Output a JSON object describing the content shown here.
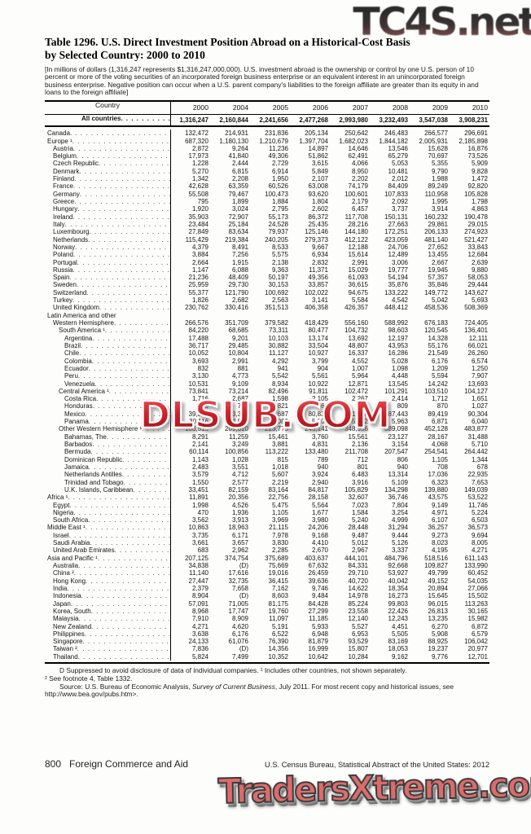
{
  "watermarks": {
    "top": "TC4S.net",
    "middle": "DLSUB.COM",
    "bottom": "TradersXtreme.com"
  },
  "title": {
    "line1": "Table 1296. U.S. Direct Investment Position Abroad on a Historical-Cost Basis",
    "line2": "by Selected Country: 2000 to 2010"
  },
  "note": "[In millions of dollars (1,316,247 represents $1,316,247,000,000). U.S. investment abroad is the ownership or control by one U.S. person of 10 percent or more of the voting securities of an incorporated foreign  business enterprise or an equivalent interest in an unincorporated foreign business enterprise. Negative position can occur when a U.S. parent company's liabilities to the foreign affiliate are greater than its equity in and loans to the foreign affiliate]",
  "table": {
    "columns": [
      "Country",
      "2000",
      "2004",
      "2005",
      "2006",
      "2007",
      "2008",
      "2009",
      "2010"
    ],
    "all_countries": {
      "label": "All countries",
      "values": [
        "1,316,247",
        "2,160,844",
        "2,241,656",
        "2,477,268",
        "2,993,980",
        "3,232,493",
        "3,547,038",
        "3,908,231"
      ]
    },
    "rows": [
      {
        "label": "Canada",
        "indent": 0,
        "values": [
          "132,472",
          "214,931",
          "231,836",
          "205,134",
          "250,642",
          "246,483",
          "266,577",
          "296,691"
        ]
      },
      {
        "label": "Europe ¹",
        "indent": 0,
        "values": [
          "687,320",
          "1,180,130",
          "1,210,679",
          "1,397,704",
          "1,682,023",
          "1,844,182",
          "2,005,931",
          "2,185,898"
        ]
      },
      {
        "label": "Austria",
        "indent": 1,
        "values": [
          "2,872",
          "9,264",
          "11,236",
          "14,897",
          "14,646",
          "13,546",
          "15,628",
          "16,876"
        ]
      },
      {
        "label": "Belgium",
        "indent": 1,
        "values": [
          "17,973",
          "41,840",
          "49,306",
          "51,862",
          "62,491",
          "65,279",
          "70,697",
          "73,526"
        ]
      },
      {
        "label": "Czech Republic",
        "indent": 1,
        "values": [
          "1,228",
          "2,444",
          "2,729",
          "3,615",
          "4,066",
          "5,053",
          "5,355",
          "5,909"
        ]
      },
      {
        "label": "Denmark",
        "indent": 1,
        "values": [
          "5,270",
          "6,815",
          "6,914",
          "5,849",
          "8,950",
          "10,481",
          "9,790",
          "9,828"
        ]
      },
      {
        "label": "Finland",
        "indent": 1,
        "values": [
          "1,342",
          "2,208",
          "1,950",
          "2,107",
          "2,202",
          "2,012",
          "1,988",
          "1,472"
        ]
      },
      {
        "label": "France",
        "indent": 1,
        "values": [
          "42,628",
          "63,359",
          "60,526",
          "63,008",
          "74,179",
          "84,409",
          "89,249",
          "92,820"
        ]
      },
      {
        "label": "Germany",
        "indent": 1,
        "values": [
          "55,508",
          "79,467",
          "100,473",
          "93,620",
          "100,601",
          "107,833",
          "110,958",
          "105,828"
        ]
      },
      {
        "label": "Greece",
        "indent": 1,
        "values": [
          "795",
          "1,899",
          "1,884",
          "1,804",
          "2,179",
          "2,092",
          "1,995",
          "1,798"
        ]
      },
      {
        "label": "Hungary",
        "indent": 1,
        "values": [
          "1,920",
          "3,024",
          "2,795",
          "2,602",
          "6,457",
          "3,737",
          "3,914",
          "4,863"
        ]
      },
      {
        "label": "Ireland",
        "indent": 1,
        "values": [
          "35,903",
          "72,907",
          "55,173",
          "86,372",
          "117,708",
          "150,131",
          "160,232",
          "190,478"
        ]
      },
      {
        "label": "Italy",
        "indent": 1,
        "values": [
          "23,484",
          "25,184",
          "24,528",
          "25,435",
          "28,216",
          "27,663",
          "29,861",
          "29,015"
        ]
      },
      {
        "label": "Luxembourg",
        "indent": 1,
        "values": [
          "27,849",
          "83,634",
          "79,937",
          "125,146",
          "144,180",
          "172,251",
          "206,133",
          "274,923"
        ]
      },
      {
        "label": "Netherlands",
        "indent": 1,
        "values": [
          "115,429",
          "219,384",
          "240,205",
          "279,373",
          "412,122",
          "423,059",
          "481,140",
          "521,427"
        ]
      },
      {
        "label": "Norway",
        "indent": 1,
        "values": [
          "4,379",
          "8,491",
          "8,533",
          "9,667",
          "12,188",
          "24,706",
          "27,652",
          "33,843"
        ]
      },
      {
        "label": "Poland",
        "indent": 1,
        "values": [
          "3,884",
          "7,256",
          "5,575",
          "6,934",
          "15,614",
          "12,489",
          "13,455",
          "12,684"
        ]
      },
      {
        "label": "Portugal",
        "indent": 1,
        "values": [
          "2,664",
          "1,915",
          "2,138",
          "2,832",
          "2,991",
          "3,006",
          "2,667",
          "2,639"
        ]
      },
      {
        "label": "Russia",
        "indent": 1,
        "values": [
          "1,147",
          "6,088",
          "9,363",
          "11,371",
          "15,029",
          "19,777",
          "19,945",
          "9,880"
        ]
      },
      {
        "label": "Spain",
        "indent": 1,
        "values": [
          "21,236",
          "48,409",
          "50,197",
          "49,356",
          "61,093",
          "54,194",
          "57,357",
          "58,053"
        ]
      },
      {
        "label": "Sweden",
        "indent": 1,
        "values": [
          "25,959",
          "29,730",
          "30,153",
          "33,857",
          "36,615",
          "35,876",
          "35,846",
          "29,444"
        ]
      },
      {
        "label": "Switzerland",
        "indent": 1,
        "values": [
          "55,377",
          "121,790",
          "100,692",
          "102,022",
          "94,675",
          "133,222",
          "149,772",
          "143,627"
        ]
      },
      {
        "label": "Turkey",
        "indent": 1,
        "values": [
          "1,826",
          "2,682",
          "2,563",
          "3,141",
          "5,584",
          "4,542",
          "5,042",
          "5,693"
        ]
      },
      {
        "label": "United Kingdom",
        "indent": 1,
        "values": [
          "230,762",
          "330,416",
          "351,513",
          "406,358",
          "426,357",
          "448,412",
          "458,536",
          "508,369"
        ]
      },
      {
        "label": "Latin America and other",
        "indent": 0,
        "values": null
      },
      {
        "label": "Western Hemisphere",
        "indent": 1,
        "values": [
          "266,576",
          "351,709",
          "379,582",
          "418,429",
          "556,160",
          "588,992",
          "676,183",
          "724,405"
        ]
      },
      {
        "label": "South America ¹",
        "indent": 2,
        "values": [
          "84,220",
          "68,685",
          "73,311",
          "80,477",
          "104,732",
          "98,603",
          "120,545",
          "136,401"
        ]
      },
      {
        "label": "Argentina",
        "indent": 3,
        "values": [
          "17,488",
          "9,201",
          "10,103",
          "13,174",
          "13,692",
          "12,197",
          "14,328",
          "12,111"
        ]
      },
      {
        "label": "Brazil",
        "indent": 3,
        "values": [
          "36,717",
          "29,485",
          "30,882",
          "33,504",
          "48,807",
          "43,953",
          "55,176",
          "66,021"
        ]
      },
      {
        "label": "Chile",
        "indent": 3,
        "values": [
          "10,052",
          "10,804",
          "11,127",
          "10,927",
          "16,337",
          "16,286",
          "21,549",
          "26,260"
        ]
      },
      {
        "label": "Colombia",
        "indent": 3,
        "values": [
          "3,693",
          "2,991",
          "4,292",
          "3,799",
          "4,552",
          "5,028",
          "6,176",
          "6,574"
        ]
      },
      {
        "label": "Ecuador",
        "indent": 3,
        "values": [
          "832",
          "881",
          "941",
          "904",
          "1,007",
          "1,098",
          "1,209",
          "1,250"
        ]
      },
      {
        "label": "Peru",
        "indent": 3,
        "values": [
          "3,130",
          "4,773",
          "5,542",
          "5,561",
          "5,964",
          "4,448",
          "5,594",
          "7,907"
        ]
      },
      {
        "label": "Venezuela",
        "indent": 3,
        "values": [
          "10,531",
          "9,109",
          "8,934",
          "10,922",
          "12,871",
          "13,545",
          "14,242",
          "13,693"
        ]
      },
      {
        "label": "Central America ¹",
        "indent": 2,
        "values": [
          "73,841",
          "73,214",
          "82,496",
          "91,811",
          "102,472",
          "101,291",
          "103,510",
          "104,127"
        ]
      },
      {
        "label": "Costa Rica",
        "indent": 3,
        "values": [
          "1,716",
          "2,687",
          "1,598",
          "2,105",
          "2,267",
          "2,414",
          "1,712",
          "1,651"
        ]
      },
      {
        "label": "Honduras",
        "indent": 3,
        "values": [
          "399",
          "755",
          "821",
          "864",
          "626",
          "809",
          "870",
          "1,027"
        ]
      },
      {
        "label": "Mexico",
        "indent": 3,
        "values": [
          "39,352",
          "63,384",
          "73,687",
          "80,831",
          "91,046",
          "87,443",
          "89,419",
          "90,304"
        ]
      },
      {
        "label": "Panama",
        "indent": 3,
        "values": [
          "30,116",
          "4,816",
          "5,086",
          "5,109",
          "5,712",
          "5,963",
          "6,871",
          "6,040"
        ]
      },
      {
        "label": "Other Western Hemisphere ¹",
        "indent": 2,
        "values": [
          "108,515",
          "209,810",
          "223,775",
          "246,141",
          "348,956",
          "389,098",
          "452,128",
          "483,877"
        ]
      },
      {
        "label": "Bahamas, The",
        "indent": 3,
        "values": [
          "8,291",
          "11,259",
          "15,461",
          "3,760",
          "15,561",
          "23,127",
          "28,167",
          "31,488"
        ]
      },
      {
        "label": "Barbados",
        "indent": 3,
        "values": [
          "2,141",
          "3,249",
          "3,881",
          "4,831",
          "2,136",
          "3,154",
          "4,068",
          "5,710"
        ]
      },
      {
        "label": "Bermuda",
        "indent": 3,
        "values": [
          "60,114",
          "100,856",
          "113,222",
          "133,480",
          "211,708",
          "207,547",
          "254,541",
          "264,442"
        ]
      },
      {
        "label": "Dominican Republic",
        "indent": 3,
        "values": [
          "1,143",
          "1,028",
          "815",
          "789",
          "712",
          "806",
          "1,105",
          "1,344"
        ]
      },
      {
        "label": "Jamaica",
        "indent": 3,
        "values": [
          "2,483",
          "3,551",
          "1,018",
          "940",
          "801",
          "940",
          "708",
          "678"
        ]
      },
      {
        "label": "Netherlands Antilles",
        "indent": 3,
        "values": [
          "3,579",
          "4,712",
          "5,607",
          "3,924",
          "6,483",
          "13,314",
          "17,036",
          "22,935"
        ]
      },
      {
        "label": "Trinidad and Tobago",
        "indent": 3,
        "values": [
          "1,550",
          "2,577",
          "2,219",
          "2,940",
          "3,916",
          "5,109",
          "6,323",
          "7,653"
        ]
      },
      {
        "label": "U.K. Islands, Caribbean",
        "indent": 3,
        "values": [
          "33,451",
          "82,159",
          "83,164",
          "84,817",
          "105,829",
          "134,298",
          "139,880",
          "149,039"
        ]
      },
      {
        "label": "Africa ¹",
        "indent": 0,
        "values": [
          "11,891",
          "20,356",
          "22,756",
          "28,158",
          "32,607",
          "36,746",
          "43,575",
          "53,522"
        ]
      },
      {
        "label": "Egypt",
        "indent": 1,
        "values": [
          "1,998",
          "4,526",
          "5,475",
          "5,564",
          "7,023",
          "7,804",
          "9,149",
          "11,746"
        ]
      },
      {
        "label": "Nigeria",
        "indent": 1,
        "values": [
          "470",
          "1,936",
          "1,105",
          "1,677",
          "1,584",
          "3,254",
          "4,971",
          "5,224"
        ]
      },
      {
        "label": "South Africa",
        "indent": 1,
        "values": [
          "3,562",
          "3,913",
          "3,969",
          "3,980",
          "5,240",
          "4,999",
          "6,107",
          "6,503"
        ]
      },
      {
        "label": "Middle East ¹",
        "indent": 0,
        "values": [
          "10,863",
          "18,963",
          "21,115",
          "24,206",
          "28,448",
          "31,294",
          "36,257",
          "36,573"
        ]
      },
      {
        "label": "Israel",
        "indent": 1,
        "values": [
          "3,735",
          "6,171",
          "7,978",
          "9,168",
          "9,487",
          "9,444",
          "9,273",
          "9,694"
        ]
      },
      {
        "label": "Saudi Arabia",
        "indent": 1,
        "values": [
          "3,661",
          "3,657",
          "3,830",
          "4,410",
          "5,012",
          "5,126",
          "8,023",
          "8,005"
        ]
      },
      {
        "label": "United Arab Emirates",
        "indent": 1,
        "values": [
          "683",
          "2,962",
          "2,285",
          "2,670",
          "2,967",
          "3,337",
          "4,195",
          "4,271"
        ]
      },
      {
        "label": "Asia and Pacific ¹",
        "indent": 0,
        "values": [
          "207,125",
          "374,754",
          "375,689",
          "403,637",
          "444,101",
          "484,796",
          "518,516",
          "611,143"
        ]
      },
      {
        "label": "Australia",
        "indent": 1,
        "values": [
          "34,838",
          "(D)",
          "75,669",
          "67,632",
          "84,331",
          "92,668",
          "109,827",
          "133,990"
        ]
      },
      {
        "label": "China ²",
        "indent": 1,
        "values": [
          "11,140",
          "17,616",
          "19,016",
          "26,459",
          "29,710",
          "53,927",
          "49,799",
          "60,452"
        ]
      },
      {
        "label": "Hong Kong",
        "indent": 1,
        "values": [
          "27,447",
          "32,735",
          "36,415",
          "39,636",
          "40,720",
          "40,042",
          "49,152",
          "54,035"
        ]
      },
      {
        "label": "India",
        "indent": 1,
        "values": [
          "2,379",
          "7,658",
          "7,162",
          "9,746",
          "14,622",
          "18,354",
          "20,894",
          "27,066"
        ]
      },
      {
        "label": "Indonesia",
        "indent": 1,
        "values": [
          "8,904",
          "(D)",
          "8,603",
          "9,484",
          "14,978",
          "16,273",
          "15,645",
          "15,502"
        ]
      },
      {
        "label": "Japan",
        "indent": 1,
        "values": [
          "57,091",
          "71,005",
          "81,175",
          "84,428",
          "85,224",
          "99,803",
          "96,015",
          "113,263"
        ]
      },
      {
        "label": "Korea, South",
        "indent": 1,
        "values": [
          "8,968",
          "17,747",
          "19,760",
          "27,299",
          "23,558",
          "22,426",
          "26,813",
          "30,165"
        ]
      },
      {
        "label": "Malaysia",
        "indent": 1,
        "values": [
          "7,910",
          "8,909",
          "11,097",
          "11,185",
          "12,140",
          "12,243",
          "13,235",
          "15,982"
        ]
      },
      {
        "label": "New Zealand",
        "indent": 1,
        "values": [
          "4,271",
          "4,620",
          "5,191",
          "5,933",
          "5,527",
          "4,451",
          "6,270",
          "6,872"
        ]
      },
      {
        "label": "Philippines",
        "indent": 1,
        "values": [
          "3,638",
          "6,176",
          "6,522",
          "6,948",
          "6,953",
          "5,505",
          "5,908",
          "6,579"
        ]
      },
      {
        "label": "Singapore",
        "indent": 1,
        "values": [
          "24,133",
          "61,076",
          "76,390",
          "81,879",
          "93,529",
          "83,169",
          "88,925",
          "106,042"
        ]
      },
      {
        "label": "Taiwan ²",
        "indent": 1,
        "values": [
          "7,836",
          "(D)",
          "14,356",
          "16,999",
          "15,807",
          "18,053",
          "19,237",
          "20,977"
        ]
      },
      {
        "label": "Thailand",
        "indent": 1,
        "values": [
          "5,824",
          "7,499",
          "10,352",
          "10,642",
          "10,284",
          "9,162",
          "9,776",
          "12,701"
        ]
      }
    ]
  },
  "footnotes": {
    "line1": "D Suppressed to avoid disclosure of data of individual companies. ¹ Includes other countries, not shown separately.",
    "line2": "² See footnote 4, Table 1332.",
    "source_prefix": "Source: U.S. Bureau of Economic Analysis, ",
    "source_italic": "Survey of Current Business",
    "source_suffix": ", July 2011. For most recent copy and historical issues, see http://www.bea.gov/pubs.htm>."
  },
  "footer": {
    "page_number": "800",
    "section": "Foreign Commerce and Aid",
    "source_right": "U.S. Census Bureau, Statistical Abstract of the United States: 2012"
  }
}
